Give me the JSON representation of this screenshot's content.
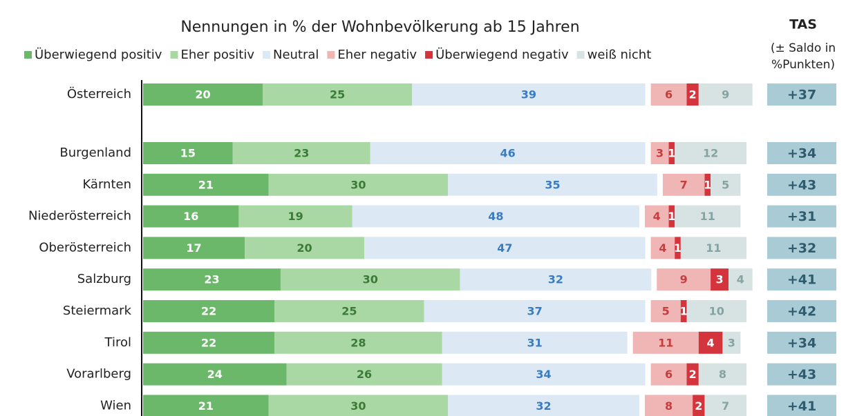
{
  "chart_data": {
    "type": "stacked-bar-horizontal",
    "title": "Nennungen in % der Wohnbevölkerung ab 15 Jahren",
    "categories": [
      "Österreich",
      "Burgenland",
      "Kärnten",
      "Niederösterreich",
      "Oberösterreich",
      "Salzburg",
      "Steiermark",
      "Tirol",
      "Vorarlberg",
      "Wien"
    ],
    "series": [
      {
        "name": "Überwiegend positiv",
        "color": "#6cb86a",
        "label_color": "#ffffff",
        "values": [
          20,
          15,
          21,
          16,
          17,
          23,
          22,
          22,
          24,
          21
        ]
      },
      {
        "name": "Eher positiv",
        "color": "#a9d8a5",
        "label_color": "#3c7a37",
        "values": [
          25,
          23,
          30,
          19,
          20,
          30,
          25,
          28,
          26,
          30
        ]
      },
      {
        "name": "Neutral",
        "color": "#dce9f5",
        "label_color": "#3a7cc0",
        "values": [
          39,
          46,
          35,
          48,
          47,
          32,
          37,
          31,
          34,
          32
        ]
      },
      {
        "name": "Eher negativ",
        "color": "#f0b6b6",
        "label_color": "#c63d3d",
        "values": [
          6,
          3,
          7,
          4,
          4,
          9,
          5,
          11,
          6,
          8
        ]
      },
      {
        "name": "Überwiegend negativ",
        "color": "#d4343c",
        "label_color": "#ffffff",
        "values": [
          2,
          1,
          1,
          1,
          1,
          3,
          1,
          4,
          2,
          2
        ]
      },
      {
        "name": "weiß nicht",
        "color": "#d6e3e2",
        "label_color": "#86a3a3",
        "values": [
          9,
          12,
          5,
          11,
          11,
          4,
          10,
          3,
          8,
          7
        ]
      }
    ],
    "tas": {
      "title": "TAS",
      "subtitle": [
        "(± Saldo in",
        "%Punkten)"
      ],
      "color": "#a9cbd6",
      "label_color": "#2f5b6c",
      "values": [
        37,
        34,
        43,
        31,
        32,
        41,
        42,
        34,
        43,
        41
      ],
      "value_labels": [
        "+37",
        "+34",
        "+43",
        "+31",
        "+32",
        "+41",
        "+42",
        "+34",
        "+43",
        "+41"
      ]
    }
  }
}
